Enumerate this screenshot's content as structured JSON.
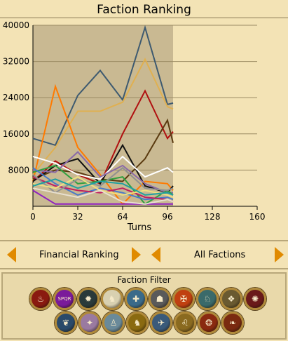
{
  "title": "Faction Ranking",
  "chart_data": {
    "type": "line",
    "xlabel": "Turns",
    "ylabel": "",
    "xlim": [
      0,
      160
    ],
    "ylim": [
      0,
      40000
    ],
    "xticks": [
      "0",
      "32",
      "64",
      "96",
      "128",
      "160"
    ],
    "yticks": [
      "8000",
      "16000",
      "24000",
      "32000",
      "40000"
    ],
    "grid": "horizontal",
    "series": [
      {
        "color": "#3e5a70",
        "points": [
          [
            0,
            15000
          ],
          [
            16,
            13500
          ],
          [
            32,
            24500
          ],
          [
            48,
            30000
          ],
          [
            64,
            23500
          ],
          [
            80,
            39500
          ],
          [
            96,
            22500
          ],
          [
            100,
            22800
          ]
        ]
      },
      {
        "color": "#e0b050",
        "points": [
          [
            0,
            7000
          ],
          [
            16,
            13000
          ],
          [
            32,
            21000
          ],
          [
            48,
            21000
          ],
          [
            64,
            23000
          ],
          [
            80,
            32500
          ],
          [
            96,
            22000
          ],
          [
            100,
            21500
          ]
        ]
      },
      {
        "color": "#ff7a00",
        "points": [
          [
            0,
            5500
          ],
          [
            16,
            26500
          ],
          [
            32,
            13000
          ],
          [
            48,
            7000
          ],
          [
            64,
            500
          ],
          [
            80,
            5500
          ],
          [
            96,
            5000
          ],
          [
            100,
            3500
          ]
        ]
      },
      {
        "color": "#b01010",
        "points": [
          [
            0,
            5500
          ],
          [
            16,
            10000
          ],
          [
            32,
            7000
          ],
          [
            48,
            5000
          ],
          [
            64,
            16000
          ],
          [
            80,
            25500
          ],
          [
            96,
            15000
          ],
          [
            100,
            16500
          ]
        ]
      },
      {
        "color": "#5a3a10",
        "points": [
          [
            0,
            6000
          ],
          [
            16,
            8000
          ],
          [
            32,
            7500
          ],
          [
            48,
            6000
          ],
          [
            64,
            5500
          ],
          [
            80,
            10500
          ],
          [
            96,
            19000
          ],
          [
            100,
            14000
          ]
        ]
      },
      {
        "color": "#101010",
        "points": [
          [
            0,
            5500
          ],
          [
            16,
            9000
          ],
          [
            32,
            10500
          ],
          [
            48,
            5000
          ],
          [
            64,
            13500
          ],
          [
            80,
            4500
          ],
          [
            96,
            3000
          ],
          [
            100,
            4500
          ]
        ]
      },
      {
        "color": "#ffffff",
        "points": [
          [
            0,
            11000
          ],
          [
            16,
            9500
          ],
          [
            32,
            7000
          ],
          [
            48,
            6000
          ],
          [
            64,
            11000
          ],
          [
            80,
            6500
          ],
          [
            96,
            8500
          ],
          [
            100,
            7500
          ]
        ]
      },
      {
        "color": "#8a6aa8",
        "points": [
          [
            0,
            8000
          ],
          [
            16,
            7500
          ],
          [
            32,
            12000
          ],
          [
            48,
            6500
          ],
          [
            64,
            9000
          ],
          [
            80,
            5000
          ],
          [
            96,
            3000
          ],
          [
            100,
            3000
          ]
        ]
      },
      {
        "color": "#30a040",
        "points": [
          [
            0,
            7500
          ],
          [
            16,
            9000
          ],
          [
            32,
            5000
          ],
          [
            48,
            5500
          ],
          [
            64,
            6500
          ],
          [
            80,
            500
          ],
          [
            96,
            3500
          ],
          [
            100,
            2500
          ]
        ]
      },
      {
        "color": "#4a7ac8",
        "points": [
          [
            0,
            8500
          ],
          [
            16,
            5000
          ],
          [
            32,
            2500
          ],
          [
            48,
            4000
          ],
          [
            64,
            3000
          ],
          [
            80,
            1500
          ],
          [
            96,
            2000
          ],
          [
            100,
            1500
          ]
        ]
      },
      {
        "color": "#c02060",
        "points": [
          [
            0,
            6500
          ],
          [
            16,
            4500
          ],
          [
            32,
            3500
          ],
          [
            48,
            3000
          ],
          [
            64,
            4000
          ],
          [
            80,
            2000
          ],
          [
            96,
            1500
          ],
          [
            100,
            1000
          ]
        ]
      },
      {
        "color": "#909090",
        "points": [
          [
            0,
            7000
          ],
          [
            16,
            3000
          ],
          [
            32,
            6000
          ],
          [
            48,
            4500
          ],
          [
            64,
            8500
          ],
          [
            80,
            4000
          ],
          [
            96,
            3500
          ],
          [
            100,
            4000
          ]
        ]
      },
      {
        "color": "#f0e080",
        "points": [
          [
            0,
            5000
          ],
          [
            16,
            4000
          ],
          [
            32,
            6500
          ],
          [
            48,
            3500
          ],
          [
            64,
            2500
          ],
          [
            80,
            3500
          ],
          [
            96,
            2500
          ],
          [
            100,
            2000
          ]
        ]
      },
      {
        "color": "#20a0a0",
        "points": [
          [
            0,
            4500
          ],
          [
            16,
            6000
          ],
          [
            32,
            4000
          ],
          [
            48,
            5500
          ],
          [
            64,
            5000
          ],
          [
            80,
            2500
          ],
          [
            96,
            3000
          ],
          [
            100,
            2500
          ]
        ]
      },
      {
        "color": "#9020c0",
        "points": [
          [
            0,
            3500
          ],
          [
            16,
            500
          ],
          [
            32,
            500
          ],
          [
            48,
            500
          ],
          [
            64,
            500
          ],
          [
            80,
            500
          ],
          [
            96,
            500
          ],
          [
            100,
            500
          ]
        ]
      },
      {
        "color": "#e8e0d0",
        "points": [
          [
            0,
            4000
          ],
          [
            16,
            3000
          ],
          [
            32,
            2000
          ],
          [
            48,
            3500
          ],
          [
            64,
            1000
          ],
          [
            80,
            500
          ],
          [
            96,
            1500
          ],
          [
            100,
            1000
          ]
        ]
      }
    ]
  },
  "selector": {
    "ranking": "Financial Ranking",
    "factions": "All Factions"
  },
  "filter": {
    "title": "Faction Filter",
    "emblems": [
      {
        "name": "flame-emblem",
        "color": "#8a1a10",
        "glyph": "♨"
      },
      {
        "name": "spqr-emblem",
        "color": "#7a1a9a",
        "glyph": "SPQR"
      },
      {
        "name": "sun-emblem",
        "color": "#2a3a3a",
        "glyph": "✹"
      },
      {
        "name": "bird-emblem",
        "color": "#d8d0b0",
        "glyph": "♞"
      },
      {
        "name": "cross-emblem",
        "color": "#3a6a8a",
        "glyph": "✚"
      },
      {
        "name": "helmet-emblem",
        "color": "#5a5a5a",
        "glyph": "☗"
      },
      {
        "name": "eagle-emblem",
        "color": "#c04010",
        "glyph": "✠"
      },
      {
        "name": "beast-emblem",
        "color": "#3a6a6a",
        "glyph": "♘"
      },
      {
        "name": "knot-emblem",
        "color": "#6a5a30",
        "glyph": "❖"
      },
      {
        "name": "wheel-emblem",
        "color": "#6a1a1a",
        "glyph": "✺"
      },
      {
        "name": "dragon-emblem",
        "color": "#2a4a6a",
        "glyph": "❦"
      },
      {
        "name": "star-emblem",
        "color": "#9a7aa0",
        "glyph": "✦"
      },
      {
        "name": "figure-emblem",
        "color": "#6a8a9a",
        "glyph": "♙"
      },
      {
        "name": "horse-emblem",
        "color": "#8a6a10",
        "glyph": "♞"
      },
      {
        "name": "chariot-emblem",
        "color": "#3a5a7a",
        "glyph": "✈"
      },
      {
        "name": "lion-emblem",
        "color": "#8a6a20",
        "glyph": "♌"
      },
      {
        "name": "sunwheel-emblem",
        "color": "#8a2a10",
        "glyph": "❂"
      },
      {
        "name": "griffin-emblem",
        "color": "#7a2a10",
        "glyph": "❧"
      }
    ]
  }
}
